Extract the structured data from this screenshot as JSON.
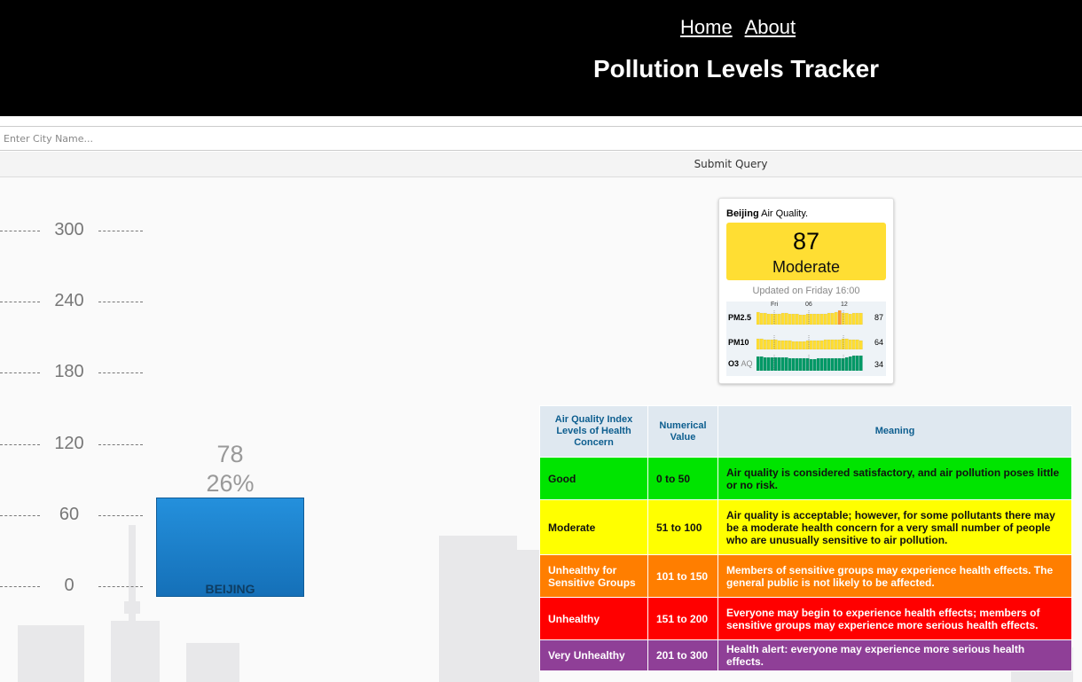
{
  "nav": {
    "home": "Home",
    "about": "About"
  },
  "page_title": "Pollution Levels Tracker",
  "search": {
    "placeholder": "Enter City Name...",
    "value": ""
  },
  "submit_label": "Submit Query",
  "chart": {
    "y_ticks": [
      "300",
      "240",
      "180",
      "120",
      "60",
      "0"
    ],
    "bar": {
      "value": "78",
      "percent": "26%",
      "category": "BEIJING"
    }
  },
  "chart_data": {
    "type": "bar",
    "categories": [
      "BEIJING"
    ],
    "values": [
      78
    ],
    "ylim": [
      0,
      300
    ],
    "grid": true
  },
  "widget": {
    "city": "Beijing",
    "title_suffix": " Air Quality.",
    "aqi": "87",
    "status": "Moderate",
    "updated": "Updated on Friday 16:00",
    "axis_labels": [
      "Fri",
      "06",
      "12"
    ],
    "pollutants": [
      {
        "name": "PM2.5",
        "sub": "",
        "value": "87"
      },
      {
        "name": "PM10",
        "sub": "",
        "value": "64"
      },
      {
        "name": "O3",
        "sub": "AQ",
        "value": "34"
      }
    ],
    "colors": {
      "moderate": "#ffde33",
      "good": "#009966",
      "unhealthy_sg": "#ff9933"
    }
  },
  "aqi_table": {
    "headers": [
      "Air Quality Index Levels of Health Concern",
      "Numerical Value",
      "Meaning"
    ],
    "rows": [
      {
        "level": "Good",
        "range": "0 to 50",
        "meaning": "Air quality is considered satisfactory, and air pollution poses little or no risk.",
        "color": "#00e400"
      },
      {
        "level": "Moderate",
        "range": "51 to 100",
        "meaning": "Air quality is acceptable; however, for some pollutants there may be a moderate health concern for a very small number of people who are unusually sensitive to air pollution.",
        "color": "#ffff00"
      },
      {
        "level": "Unhealthy for Sensitive Groups",
        "range": "101 to 150",
        "meaning": "Members of sensitive groups may experience health effects. The general public is not likely to be affected.",
        "color": "#ff7e00"
      },
      {
        "level": "Unhealthy",
        "range": "151 to 200",
        "meaning": "Everyone may begin to experience health effects; members of sensitive groups may experience more serious health effects.",
        "color": "#ff0000"
      },
      {
        "level": "Very Unhealthy",
        "range": "201 to 300",
        "meaning": "Health alert: everyone may experience more serious health effects.",
        "color": "#8f3f97"
      }
    ]
  }
}
